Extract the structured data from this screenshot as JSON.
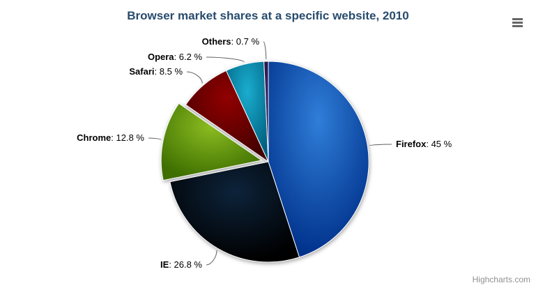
{
  "chart": {
    "title": "Browser market shares at a specific website, 2010",
    "credit": "Highcharts.com"
  },
  "chart_data": {
    "type": "pie",
    "title": "Browser market shares at a specific website, 2010",
    "unit": "%",
    "legend": "none",
    "label_format": "{name}: {value} %",
    "start_angle_deg": 0,
    "direction": "clockwise",
    "series": [
      {
        "name": "Firefox",
        "value": 45,
        "color": "#2f7ed8",
        "sliced": false
      },
      {
        "name": "IE",
        "value": 26.8,
        "color": "#0d233a",
        "sliced": false
      },
      {
        "name": "Chrome",
        "value": 12.8,
        "color": "#8bbc21",
        "sliced": true
      },
      {
        "name": "Safari",
        "value": 8.5,
        "color": "#910000",
        "sliced": false
      },
      {
        "name": "Opera",
        "value": 6.2,
        "color": "#1aadce",
        "sliced": false
      },
      {
        "name": "Others",
        "value": 0.7,
        "color": "#492970",
        "sliced": false
      }
    ]
  },
  "ui": {
    "connector_color": "#606060",
    "title_color": "#274b6d",
    "credit_color": "#909090",
    "export_icon": "hamburger-icon"
  }
}
